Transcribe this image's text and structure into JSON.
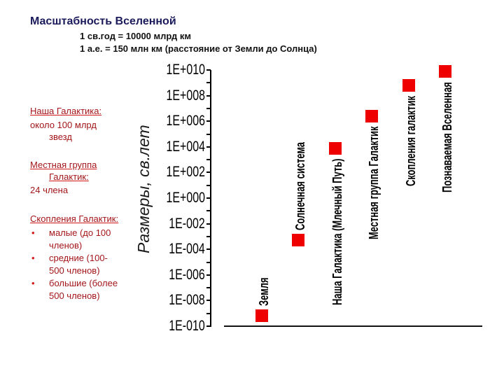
{
  "title": "Масштабность Вселенной",
  "subtitle": {
    "line1": "1 св.год = 10000 млрд км",
    "line2": "1 а.е. = 150 млн км (расстояние от Земли до Солнца)"
  },
  "notes": {
    "galaxy": {
      "heading": "Наша Галактика:",
      "text_lines": [
        "около 100 млрд",
        "звезд"
      ]
    },
    "local_group": {
      "heading_lines": [
        "Местная группа",
        "Галактик:"
      ],
      "text": "24 члена"
    },
    "clusters": {
      "heading": "Скопления Галактик:",
      "bullet_glyph": "•",
      "bullets": [
        {
          "lines": [
            "малые (до 100",
            "членов)"
          ]
        },
        {
          "lines": [
            "средние (100-",
            "500 членов)"
          ]
        },
        {
          "lines": [
            "большие (более",
            "500 членов)"
          ]
        }
      ]
    }
  },
  "colors": {
    "title": "#1b1b5c",
    "notes": "#a3161a",
    "underline": "#d41a1a",
    "marker": "#ee0000"
  },
  "chart_data": {
    "type": "scatter",
    "title": "",
    "xlabel": "",
    "ylabel": "Размеры, св.лет",
    "yscale": "log",
    "ylim": [
      1e-10,
      10000000000.0
    ],
    "grid": false,
    "legend": null,
    "y_ticks": [
      "1E+010",
      "1E+008",
      "1E+006",
      "1E+004",
      "1E+002",
      "1E+000",
      "1E-002",
      "1E-004",
      "1E-006",
      "1E-008",
      "1E-010"
    ],
    "y_tick_exponents": [
      10,
      8,
      6,
      4,
      2,
      0,
      -2,
      -4,
      -6,
      -8,
      -10
    ],
    "categories": [
      "Земля",
      "Солнечная система",
      "Наша Галактика (Млечный Путь)",
      "Местная группа Галактик",
      "Скопления галактик",
      "Познаваемая Вселенная"
    ],
    "values": [
      6e-10,
      0.0005,
      8000.0,
      2500000.0,
      600000000.0,
      8000000000.0
    ],
    "log10_values": [
      -9.2,
      -3.3,
      3.9,
      6.4,
      8.8,
      9.9
    ],
    "label_positions": [
      "above",
      "above",
      "below",
      "below",
      "below",
      "below"
    ],
    "marker": {
      "shape": "square",
      "color": "#ee0000"
    }
  }
}
